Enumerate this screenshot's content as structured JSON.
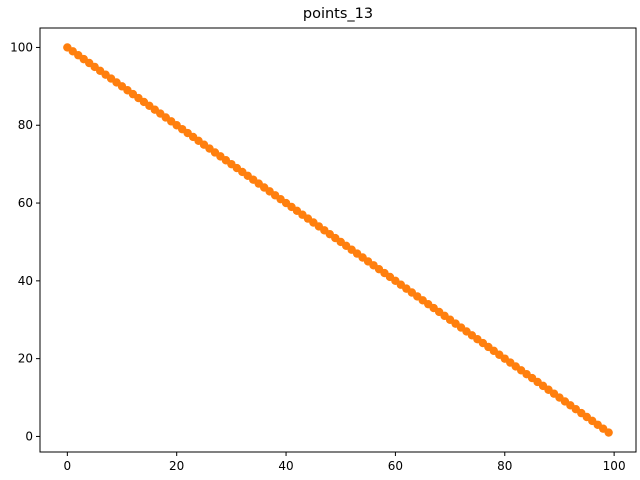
{
  "chart_data": {
    "type": "scatter",
    "title": "points_13",
    "xlabel": "",
    "ylabel": "",
    "xlim": [
      -5,
      104
    ],
    "ylim": [
      -4,
      105
    ],
    "x_ticks": [
      0,
      20,
      40,
      60,
      80,
      100
    ],
    "y_ticks": [
      0,
      20,
      40,
      60,
      80,
      100
    ],
    "grid": false,
    "legend": "none",
    "series": [
      {
        "color": "#ff7f0e",
        "points": [
          [
            0,
            100
          ],
          [
            1,
            99
          ],
          [
            2,
            98
          ],
          [
            3,
            97
          ],
          [
            4,
            96
          ],
          [
            5,
            95
          ],
          [
            6,
            94
          ],
          [
            7,
            93
          ],
          [
            8,
            92
          ],
          [
            9,
            91
          ],
          [
            10,
            90
          ],
          [
            11,
            89
          ],
          [
            12,
            88
          ],
          [
            13,
            87
          ],
          [
            14,
            86
          ],
          [
            15,
            85
          ],
          [
            16,
            84
          ],
          [
            17,
            83
          ],
          [
            18,
            82
          ],
          [
            19,
            81
          ],
          [
            20,
            80
          ],
          [
            21,
            79
          ],
          [
            22,
            78
          ],
          [
            23,
            77
          ],
          [
            24,
            76
          ],
          [
            25,
            75
          ],
          [
            26,
            74
          ],
          [
            27,
            73
          ],
          [
            28,
            72
          ],
          [
            29,
            71
          ],
          [
            30,
            70
          ],
          [
            31,
            69
          ],
          [
            32,
            68
          ],
          [
            33,
            67
          ],
          [
            34,
            66
          ],
          [
            35,
            65
          ],
          [
            36,
            64
          ],
          [
            37,
            63
          ],
          [
            38,
            62
          ],
          [
            39,
            61
          ],
          [
            40,
            60
          ],
          [
            41,
            59
          ],
          [
            42,
            58
          ],
          [
            43,
            57
          ],
          [
            44,
            56
          ],
          [
            45,
            55
          ],
          [
            46,
            54
          ],
          [
            47,
            53
          ],
          [
            48,
            52
          ],
          [
            49,
            51
          ],
          [
            50,
            50
          ],
          [
            51,
            49
          ],
          [
            52,
            48
          ],
          [
            53,
            47
          ],
          [
            54,
            46
          ],
          [
            55,
            45
          ],
          [
            56,
            44
          ],
          [
            57,
            43
          ],
          [
            58,
            42
          ],
          [
            59,
            41
          ],
          [
            60,
            40
          ],
          [
            61,
            39
          ],
          [
            62,
            38
          ],
          [
            63,
            37
          ],
          [
            64,
            36
          ],
          [
            65,
            35
          ],
          [
            66,
            34
          ],
          [
            67,
            33
          ],
          [
            68,
            32
          ],
          [
            69,
            31
          ],
          [
            70,
            30
          ],
          [
            71,
            29
          ],
          [
            72,
            28
          ],
          [
            73,
            27
          ],
          [
            74,
            26
          ],
          [
            75,
            25
          ],
          [
            76,
            24
          ],
          [
            77,
            23
          ],
          [
            78,
            22
          ],
          [
            79,
            21
          ],
          [
            80,
            20
          ],
          [
            81,
            19
          ],
          [
            82,
            18
          ],
          [
            83,
            17
          ],
          [
            84,
            16
          ],
          [
            85,
            15
          ],
          [
            86,
            14
          ],
          [
            87,
            13
          ],
          [
            88,
            12
          ],
          [
            89,
            11
          ],
          [
            90,
            10
          ],
          [
            91,
            9
          ],
          [
            92,
            8
          ],
          [
            93,
            7
          ],
          [
            94,
            6
          ],
          [
            95,
            5
          ],
          [
            96,
            4
          ],
          [
            97,
            3
          ],
          [
            98,
            2
          ],
          [
            99,
            1
          ]
        ]
      }
    ]
  }
}
